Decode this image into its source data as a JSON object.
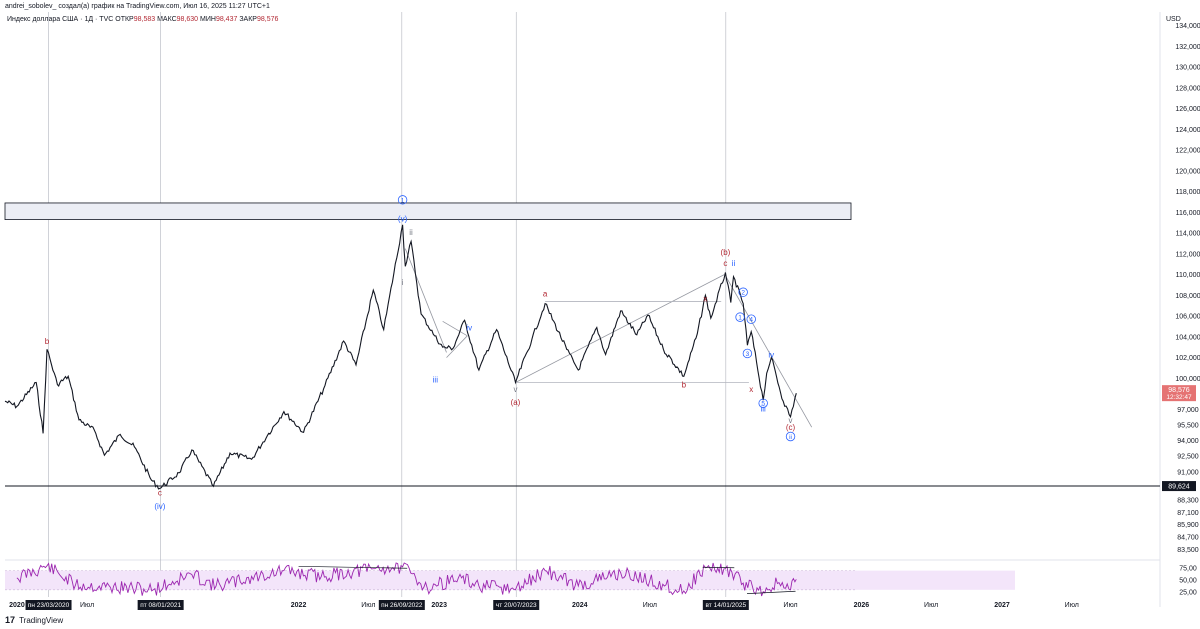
{
  "header": {
    "author_line": "andrei_sobolev_ создал(а) график на TradingView.com, Июл 16, 2025 11:27 UTC+1",
    "symbol": "Индекс доллара США · 1Д · TVC",
    "ohlc": [
      {
        "label": "ОТКР",
        "value": "98,583"
      },
      {
        "label": "МАКС",
        "value": "98,630"
      },
      {
        "label": "МИН",
        "value": "98,437"
      },
      {
        "label": "ЗАКР",
        "value": "98,576"
      }
    ]
  },
  "footer": {
    "logo_glyph": "17",
    "brand": "TradingView"
  },
  "colors": {
    "wave_red": "#b22833",
    "wave_blue": "#2962ff",
    "candle": "#131722",
    "rsi_line": "#9c27b0",
    "rsi_band": "#f3e5fa"
  },
  "chart_data": {
    "type": "line",
    "currency": "USD",
    "price_axis_labels": [
      "134,000",
      "132,000",
      "130,000",
      "128,000",
      "126,000",
      "124,000",
      "122,000",
      "120,000",
      "118,000",
      "116,000",
      "114,000",
      "112,000",
      "110,000",
      "108,000",
      "106,000",
      "104,000",
      "102,000",
      "100,000",
      "97,000",
      "95,500",
      "94,000",
      "92,500",
      "91,000",
      "88,300",
      "87,100",
      "85,900",
      "84,700",
      "83,500"
    ],
    "last_price": {
      "value": "98,576",
      "countdown": "12:32:47"
    },
    "support_level": {
      "value": 89.624,
      "label": "89,624"
    },
    "resistance_zone": [
      115.3,
      116.9
    ],
    "time_axis_labels": [
      "2020",
      "Июл",
      "2022",
      "Июл",
      "2023",
      "2024",
      "Июл",
      "Июл",
      "2026",
      "Июл",
      "2027",
      "Июл"
    ],
    "date_markers": [
      "пн 23/03/2020",
      "пт 08/01/2021",
      "пн 26/09/2022",
      "чт 20/07/2023",
      "вт 14/01/2025"
    ],
    "rsi_axis_labels": [
      "75,00",
      "50,00",
      "25,00"
    ],
    "price_path": [
      [
        "2019-12-01",
        97.8
      ],
      [
        "2020-01-01",
        97.3
      ],
      [
        "2020-02-20",
        99.6
      ],
      [
        "2020-03-09",
        94.7
      ],
      [
        "2020-03-19",
        102.8
      ],
      [
        "2020-04-15",
        99.4
      ],
      [
        "2020-05-13",
        100.2
      ],
      [
        "2020-06-10",
        96.0
      ],
      [
        "2020-07-20",
        95.0
      ],
      [
        "2020-08-15",
        92.6
      ],
      [
        "2020-09-25",
        94.6
      ],
      [
        "2020-11-01",
        93.4
      ],
      [
        "2020-12-15",
        90.2
      ],
      [
        "2021-01-06",
        89.4
      ],
      [
        "2021-02-25",
        90.9
      ],
      [
        "2021-03-30",
        93.1
      ],
      [
        "2021-05-25",
        89.6
      ],
      [
        "2021-07-07",
        92.8
      ],
      [
        "2021-09-01",
        92.2
      ],
      [
        "2021-10-12",
        94.5
      ],
      [
        "2021-11-24",
        96.8
      ],
      [
        "2022-01-14",
        94.8
      ],
      [
        "2022-03-07",
        99.0
      ],
      [
        "2022-04-28",
        103.6
      ],
      [
        "2022-05-30",
        101.3
      ],
      [
        "2022-07-14",
        108.5
      ],
      [
        "2022-08-10",
        104.7
      ],
      [
        "2022-09-28",
        114.8
      ],
      [
        "2022-10-05",
        110.8
      ],
      [
        "2022-10-20",
        113.2
      ],
      [
        "2022-11-15",
        106.2
      ],
      [
        "2022-12-20",
        104.1
      ],
      [
        "2023-01-10",
        103.0
      ],
      [
        "2023-02-06",
        102.9
      ],
      [
        "2023-03-08",
        105.6
      ],
      [
        "2023-04-14",
        100.8
      ],
      [
        "2023-05-30",
        104.7
      ],
      [
        "2023-07-18",
        99.6
      ],
      [
        "2023-08-30",
        103.8
      ],
      [
        "2023-10-03",
        107.2
      ],
      [
        "2023-11-28",
        102.8
      ],
      [
        "2023-12-28",
        100.8
      ],
      [
        "2024-02-14",
        104.9
      ],
      [
        "2024-03-08",
        102.3
      ],
      [
        "2024-04-16",
        106.5
      ],
      [
        "2024-05-28",
        104.2
      ],
      [
        "2024-06-26",
        106.1
      ],
      [
        "2024-08-05",
        102.8
      ],
      [
        "2024-09-27",
        100.2
      ],
      [
        "2024-11-01",
        104.3
      ],
      [
        "2024-11-22",
        108.0
      ],
      [
        "2024-12-06",
        105.8
      ],
      [
        "2025-01-13",
        110.2
      ],
      [
        "2025-01-27",
        107.3
      ],
      [
        "2025-02-03",
        109.8
      ],
      [
        "2025-02-28",
        107.2
      ],
      [
        "2025-03-11",
        103.2
      ],
      [
        "2025-03-21",
        104.5
      ],
      [
        "2025-04-21",
        97.9
      ],
      [
        "2025-04-30",
        100.5
      ],
      [
        "2025-05-12",
        102.0
      ],
      [
        "2025-06-12",
        97.8
      ],
      [
        "2025-07-01",
        96.3
      ],
      [
        "2025-07-16",
        98.576
      ]
    ],
    "rsi_path": [
      [
        "2020-01-01",
        55
      ],
      [
        "2020-03-19",
        80
      ],
      [
        "2020-06-01",
        40
      ],
      [
        "2020-12-20",
        30
      ],
      [
        "2021-03-30",
        62
      ],
      [
        "2021-06-01",
        38
      ],
      [
        "2021-11-24",
        70
      ],
      [
        "2022-03-01",
        58
      ],
      [
        "2022-07-14",
        74
      ],
      [
        "2022-09-28",
        78
      ],
      [
        "2022-12-01",
        34
      ],
      [
        "2023-02-20",
        55
      ],
      [
        "2023-04-14",
        38
      ],
      [
        "2023-07-18",
        30
      ],
      [
        "2023-10-03",
        70
      ],
      [
        "2023-12-28",
        38
      ],
      [
        "2024-04-16",
        66
      ],
      [
        "2024-09-27",
        28
      ],
      [
        "2024-11-22",
        76
      ],
      [
        "2025-01-13",
        74
      ],
      [
        "2025-02-28",
        44
      ],
      [
        "2025-04-21",
        26
      ],
      [
        "2025-06-01",
        45
      ],
      [
        "2025-07-01",
        30
      ],
      [
        "2025-07-16",
        52
      ]
    ],
    "rsi_divergence_lines": [
      [
        [
          "2022-01-01",
          79
        ],
        [
          "2022-10-10",
          75
        ]
      ],
      [
        [
          "2024-11-15",
          77
        ],
        [
          "2025-02-05",
          76
        ]
      ],
      [
        [
          "2025-03-10",
          22
        ],
        [
          "2025-07-14",
          27
        ]
      ]
    ],
    "vertical_markers": [
      "2020-03-23",
      "2021-01-08",
      "2022-09-26",
      "2023-07-20",
      "2025-01-14"
    ],
    "trendlines": [
      [
        [
          "2022-10-05",
          112.5
        ],
        [
          "2023-01-20",
          102.5
        ]
      ],
      [
        [
          "2023-01-10",
          105.5
        ],
        [
          "2023-03-15",
          104.1
        ]
      ],
      [
        [
          "2023-01-20",
          102.0
        ],
        [
          "2023-03-15",
          104.1
        ]
      ],
      [
        [
          "2023-07-18",
          99.6
        ],
        [
          "2025-01-10",
          110.0
        ]
      ],
      [
        [
          "2025-01-13",
          109.9
        ],
        [
          "2025-08-25",
          95.3
        ]
      ]
    ],
    "horizontal_segments": [
      [
        [
          "2023-07-18",
          99.6
        ],
        [
          "2025-03-15",
          99.6
        ]
      ],
      [
        [
          "2023-10-03",
          107.4
        ],
        [
          "2025-01-02",
          107.4
        ]
      ]
    ],
    "wave_labels": [
      {
        "t": "b",
        "d": "2020-03-19",
        "p": 103.6,
        "c": "red"
      },
      {
        "t": "c",
        "d": "2021-01-06",
        "p": 89.0,
        "c": "red"
      },
      {
        "t": "(iv)",
        "d": "2021-01-06",
        "p": 87.7,
        "c": "blue"
      },
      {
        "t": "1",
        "d": "2022-09-28",
        "p": 117.2,
        "c": "blue",
        "circled": true
      },
      {
        "t": "(v)",
        "d": "2022-09-28",
        "p": 115.4,
        "c": "blue"
      },
      {
        "t": "ii",
        "d": "2022-10-20",
        "p": 114.1,
        "c": "grey"
      },
      {
        "t": "i",
        "d": "2022-09-28",
        "p": 109.3,
        "c": "grey"
      },
      {
        "t": "iii",
        "d": "2022-12-22",
        "p": 99.9,
        "c": "blue"
      },
      {
        "t": "iv",
        "d": "2023-03-20",
        "p": 104.9,
        "c": "blue"
      },
      {
        "t": "v",
        "d": "2023-07-18",
        "p": 99.0,
        "c": "grey"
      },
      {
        "t": "(a)",
        "d": "2023-07-18",
        "p": 97.7,
        "c": "red"
      },
      {
        "t": "a",
        "d": "2023-10-03",
        "p": 108.2,
        "c": "red"
      },
      {
        "t": "b",
        "d": "2024-09-27",
        "p": 99.4,
        "c": "red"
      },
      {
        "t": "x",
        "d": "2024-11-22",
        "p": 107.7,
        "c": "red"
      },
      {
        "t": "(b)",
        "d": "2025-01-13",
        "p": 112.2,
        "c": "red"
      },
      {
        "t": "c",
        "d": "2025-01-13",
        "p": 111.1,
        "c": "red"
      },
      {
        "t": "ii",
        "d": "2025-02-03",
        "p": 111.1,
        "c": "blue"
      },
      {
        "t": "2",
        "d": "2025-02-28",
        "p": 108.3,
        "c": "blue",
        "circled": true
      },
      {
        "t": "1",
        "d": "2025-02-20",
        "p": 105.9,
        "c": "blue",
        "circled": true
      },
      {
        "t": "4",
        "d": "2025-03-21",
        "p": 105.7,
        "c": "blue",
        "circled": true
      },
      {
        "t": "3",
        "d": "2025-03-11",
        "p": 102.4,
        "c": "blue",
        "circled": true
      },
      {
        "t": "iv",
        "d": "2025-05-12",
        "p": 102.3,
        "c": "blue"
      },
      {
        "t": "x",
        "d": "2025-03-21",
        "p": 99.0,
        "c": "red"
      },
      {
        "t": "5",
        "d": "2025-04-21",
        "p": 97.6,
        "c": "blue",
        "circled": true
      },
      {
        "t": "iii",
        "d": "2025-04-21",
        "p": 97.1,
        "c": "blue"
      },
      {
        "t": "v",
        "d": "2025-07-01",
        "p": 96.0,
        "c": "grey"
      },
      {
        "t": "(c)",
        "d": "2025-07-01",
        "p": 95.3,
        "c": "red"
      },
      {
        "t": "ii",
        "d": "2025-07-01",
        "p": 94.4,
        "c": "blue",
        "circled": true
      }
    ]
  }
}
